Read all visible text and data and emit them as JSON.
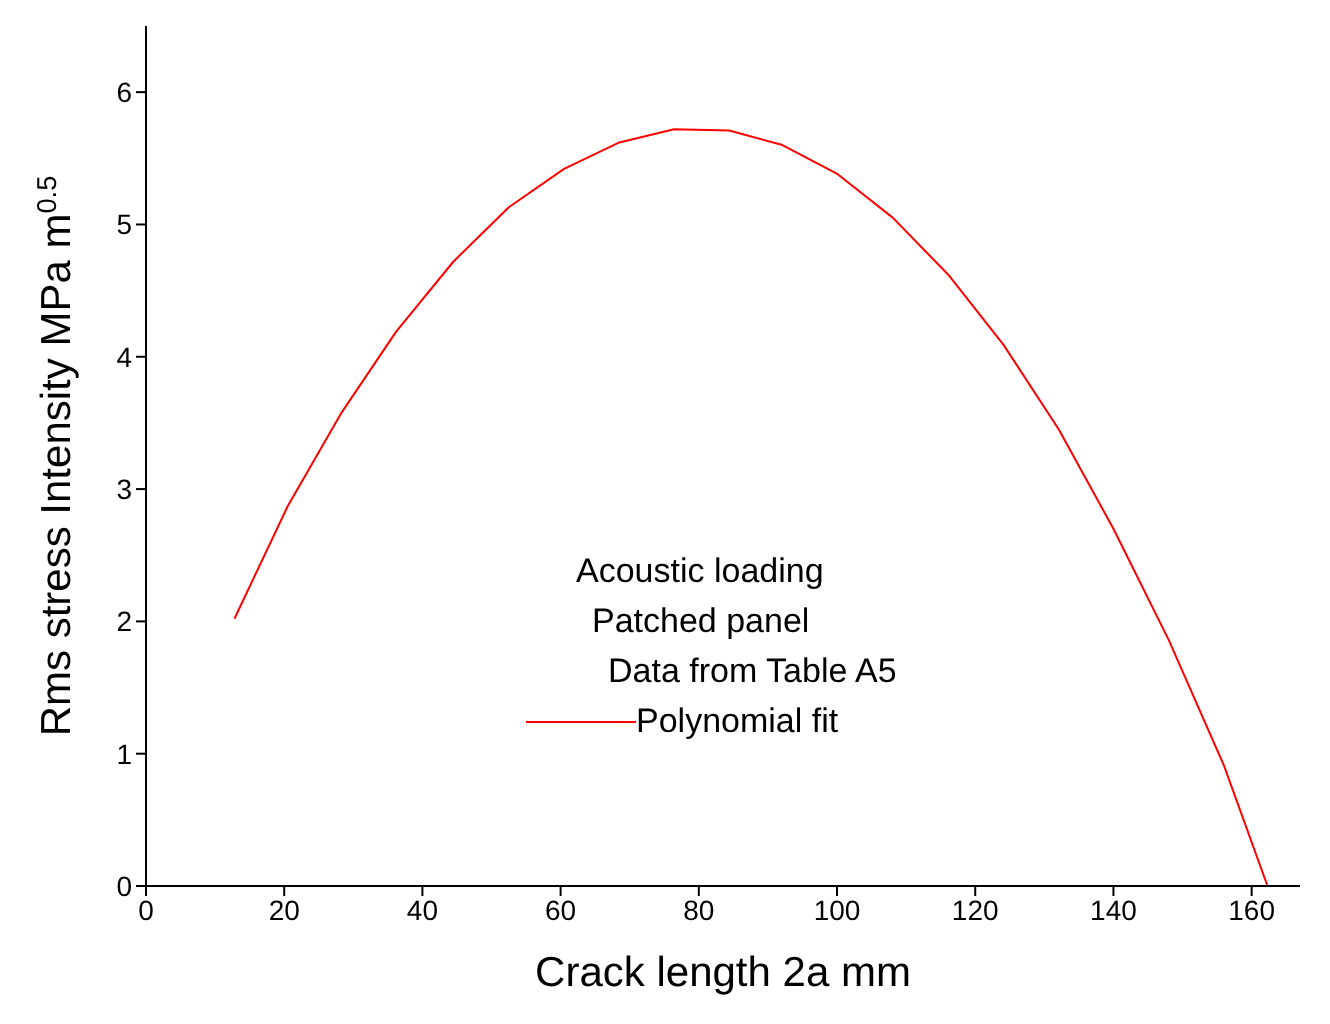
{
  "chart_data": {
    "type": "line",
    "xlabel": "Crack length 2a mm",
    "ylabel": "Rms stress Intensity MPa m$^{0.5}$",
    "annotations": [
      "Acoustic loading",
      "Patched panel",
      "Data from Table A5"
    ],
    "x": [
      12.8,
      20.5,
      28.2,
      36.2,
      44.5,
      52.5,
      60.5,
      68.5,
      76.4,
      84.4,
      92.1,
      100.1,
      108.1,
      116.1,
      124.1,
      132.1,
      140.0,
      148.0,
      156.0,
      162.3
    ],
    "series": [
      {
        "name": "Polynomial fit",
        "color": "#ff0000",
        "values": [
          2.02,
          2.87,
          3.57,
          4.19,
          4.72,
          5.13,
          5.42,
          5.62,
          5.72,
          5.71,
          5.6,
          5.38,
          5.05,
          4.62,
          4.09,
          3.45,
          2.7,
          1.86,
          0.91,
          0
        ]
      }
    ],
    "xlim": [
      0,
      167
    ],
    "ylim": [
      0,
      6.5
    ],
    "xticks": [
      0,
      20,
      40,
      60,
      80,
      100,
      120,
      140,
      160
    ],
    "yticks": [
      0,
      1,
      2,
      3,
      4,
      5,
      6
    ],
    "grid": false,
    "legend": "center",
    "marker": "none",
    "line_style": "solid"
  }
}
